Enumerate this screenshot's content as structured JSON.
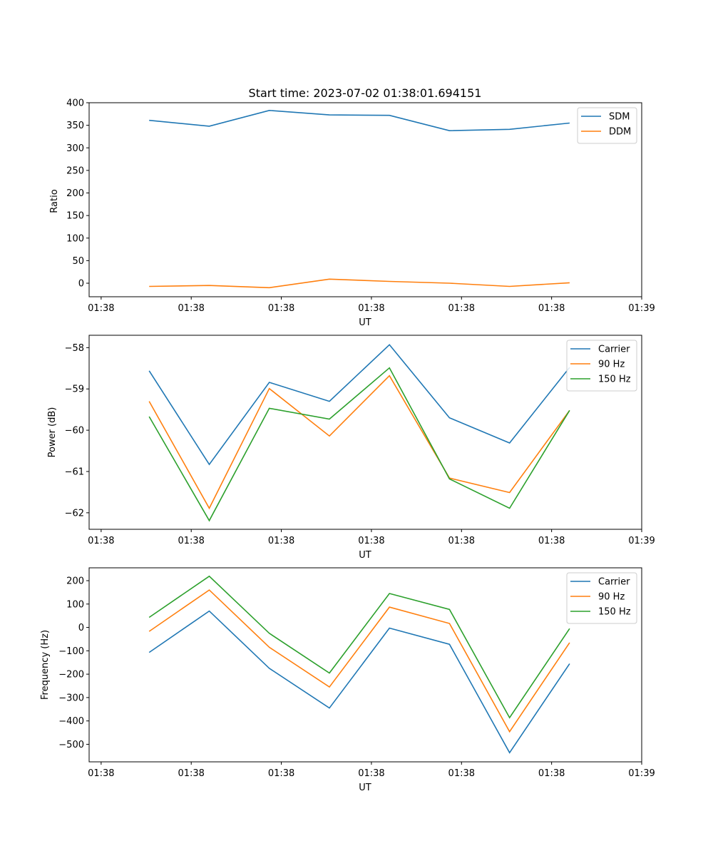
{
  "chart_data": [
    {
      "type": "line",
      "title": "Start time: 2023-07-02 01:38:01.694151",
      "xlabel": "UT",
      "ylabel": "Ratio",
      "xlim": [
        0,
        9.2
      ],
      "ylim": [
        -30,
        400
      ],
      "yticks": [
        0,
        50,
        100,
        150,
        200,
        250,
        300,
        350,
        400
      ],
      "ytick_labels": [
        "0",
        "50",
        "100",
        "150",
        "200",
        "250",
        "300",
        "350",
        "400"
      ],
      "xticks": [
        0.2,
        1.7,
        3.2,
        4.7,
        6.2,
        7.7,
        9.2
      ],
      "xtick_labels": [
        "01:38",
        "01:38",
        "01:38",
        "01:38",
        "01:38",
        "01:38",
        "01:39"
      ],
      "x": [
        1,
        2,
        3,
        4,
        5,
        6,
        7,
        8
      ],
      "legend_position": "top-right",
      "series": [
        {
          "name": "SDM",
          "color": "#1f77b4",
          "values": [
            361,
            348,
            383,
            373,
            372,
            338,
            341,
            355
          ]
        },
        {
          "name": "DDM",
          "color": "#ff7f0e",
          "values": [
            -7,
            -5,
            -10,
            9,
            4,
            0,
            -7,
            1
          ]
        }
      ]
    },
    {
      "type": "line",
      "title": "",
      "xlabel": "UT",
      "ylabel": "Power (dB)",
      "xlim": [
        0,
        9.2
      ],
      "ylim": [
        -62.4,
        -57.7
      ],
      "yticks": [
        -62,
        -61,
        -60,
        -59,
        -58
      ],
      "ytick_labels": [
        "−62",
        "−61",
        "−60",
        "−59",
        "−58"
      ],
      "xticks": [
        0.2,
        1.7,
        3.2,
        4.7,
        6.2,
        7.7,
        9.2
      ],
      "xtick_labels": [
        "01:38",
        "01:38",
        "01:38",
        "01:38",
        "01:38",
        "01:38",
        "01:39"
      ],
      "x": [
        1,
        2,
        3,
        4,
        5,
        6,
        7,
        8
      ],
      "legend_position": "top-right",
      "series": [
        {
          "name": "Carrier",
          "color": "#1f77b4",
          "values": [
            -58.56,
            -60.83,
            -58.84,
            -59.3,
            -57.93,
            -59.7,
            -60.31,
            -58.48
          ]
        },
        {
          "name": "90 Hz",
          "color": "#ff7f0e",
          "values": [
            -59.3,
            -61.89,
            -58.99,
            -60.14,
            -58.68,
            -61.16,
            -61.51,
            -59.52
          ]
        },
        {
          "name": "150 Hz",
          "color": "#2ca02c",
          "values": [
            -59.67,
            -62.19,
            -59.47,
            -59.73,
            -58.49,
            -61.18,
            -61.89,
            -59.52
          ]
        }
      ]
    },
    {
      "type": "line",
      "title": "",
      "xlabel": "UT",
      "ylabel": "Frequency (Hz)",
      "xlim": [
        0,
        9.2
      ],
      "ylim": [
        -575,
        255
      ],
      "yticks": [
        -500,
        -400,
        -300,
        -200,
        -100,
        0,
        100,
        200
      ],
      "ytick_labels": [
        "−500",
        "−400",
        "−300",
        "−200",
        "−100",
        "0",
        "100",
        "200"
      ],
      "xticks": [
        0.2,
        1.7,
        3.2,
        4.7,
        6.2,
        7.7,
        9.2
      ],
      "xtick_labels": [
        "01:38",
        "01:38",
        "01:38",
        "01:38",
        "01:38",
        "01:38",
        "01:39"
      ],
      "x": [
        1,
        2,
        3,
        4,
        5,
        6,
        7,
        8
      ],
      "legend_position": "top-right",
      "series": [
        {
          "name": "Carrier",
          "color": "#1f77b4",
          "values": [
            -107,
            70,
            -175,
            -345,
            -3,
            -72,
            -536,
            -155
          ]
        },
        {
          "name": "90 Hz",
          "color": "#ff7f0e",
          "values": [
            -17,
            160,
            -85,
            -255,
            87,
            17,
            -446,
            -65
          ]
        },
        {
          "name": "150 Hz",
          "color": "#2ca02c",
          "values": [
            43,
            219,
            -25,
            -195,
            145,
            77,
            -386,
            -5
          ]
        }
      ]
    }
  ]
}
